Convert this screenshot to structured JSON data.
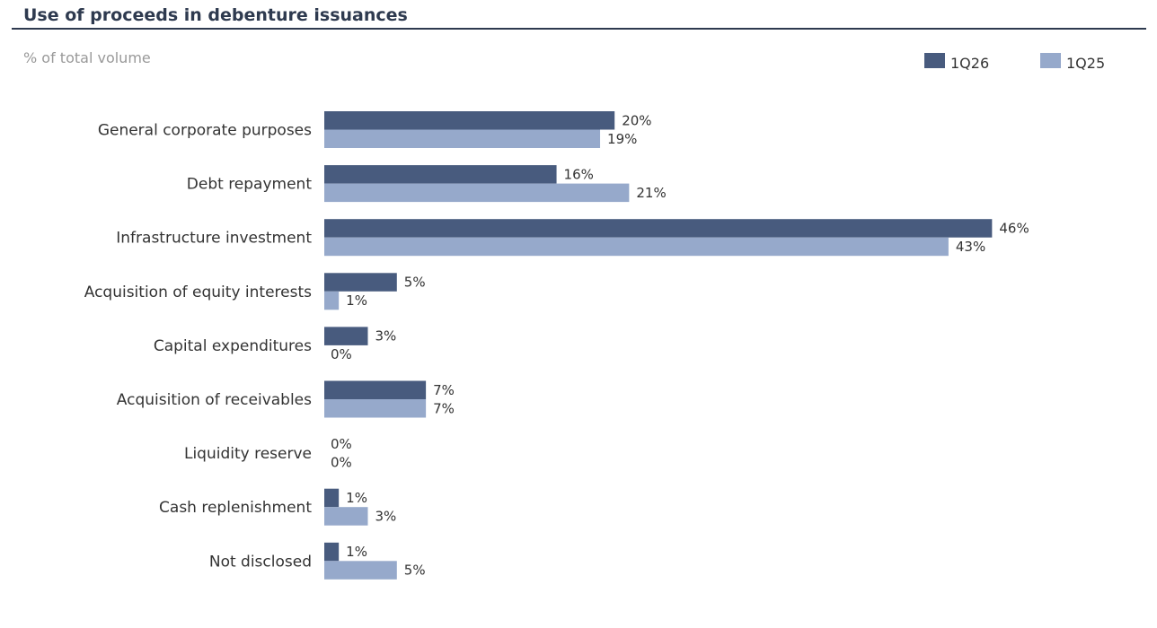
{
  "header": {
    "title": "Use of proceeds in debenture issuances",
    "subtitle": "% of total volume"
  },
  "colors": {
    "title": "#2e3a4f",
    "series_1Q26": "#485b7e",
    "series_1Q25": "#96a9cb"
  },
  "chart_data": {
    "type": "bar",
    "orientation": "horizontal",
    "title": "Use of proceeds in debenture issuances",
    "subtitle": "% of total volume",
    "categories": [
      "General corporate purposes",
      "Debt repayment",
      "Infrastructure investment",
      "Acquisition of equity interests",
      "Capital expenditures",
      "Acquisition of receivables",
      "Liquidity reserve",
      "Cash replenishment",
      "Not disclosed"
    ],
    "series": [
      {
        "name": "1Q26",
        "color": "#485b7e",
        "values": [
          20,
          16,
          46,
          5,
          3,
          7,
          0,
          1,
          1
        ]
      },
      {
        "name": "1Q25",
        "color": "#96a9cb",
        "values": [
          19,
          21,
          43,
          1,
          0,
          7,
          0,
          3,
          5
        ]
      }
    ],
    "value_suffix": "%",
    "xlim": [
      0,
      50
    ],
    "grid": false,
    "legend_position": "top-right"
  }
}
